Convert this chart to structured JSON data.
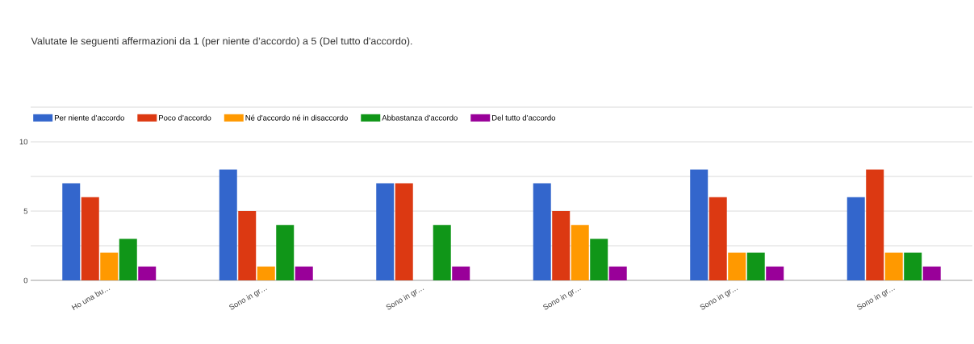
{
  "chart_data": {
    "type": "bar",
    "title": "Valutate le seguenti affermazioni da 1 (per niente d’accordo) a 5 (Del tutto d'accordo).",
    "categories": [
      "Ho una bu…",
      "Sono in gr…",
      "Sono in gr…",
      "Sono in gr…",
      "Sono in gr…",
      "Sono in gr…"
    ],
    "series": [
      {
        "name": "Per niente d’accordo",
        "color": "#3366cc",
        "values": [
          7,
          8,
          7,
          7,
          8,
          6
        ]
      },
      {
        "name": "Poco d’accordo",
        "color": "#dc3912",
        "values": [
          6,
          5,
          7,
          5,
          6,
          8
        ]
      },
      {
        "name": "Né d'accordo né in disaccordo",
        "color": "#ff9900",
        "values": [
          2,
          1,
          0,
          4,
          2,
          2
        ]
      },
      {
        "name": "Abbastanza d’accordo",
        "color": "#109618",
        "values": [
          3,
          4,
          4,
          3,
          2,
          2
        ]
      },
      {
        "name": "Del tutto d’accordo",
        "color": "#990099",
        "values": [
          1,
          1,
          1,
          1,
          1,
          1
        ]
      }
    ],
    "ylim": [
      0,
      12.5
    ],
    "yticks": [
      0,
      {
        "value": 2.5,
        "label": null
      },
      5,
      {
        "value": 7.5,
        "label": null
      },
      10,
      {
        "value": 12.5,
        "label": null
      }
    ],
    "grid": "y",
    "legend": "top left"
  }
}
